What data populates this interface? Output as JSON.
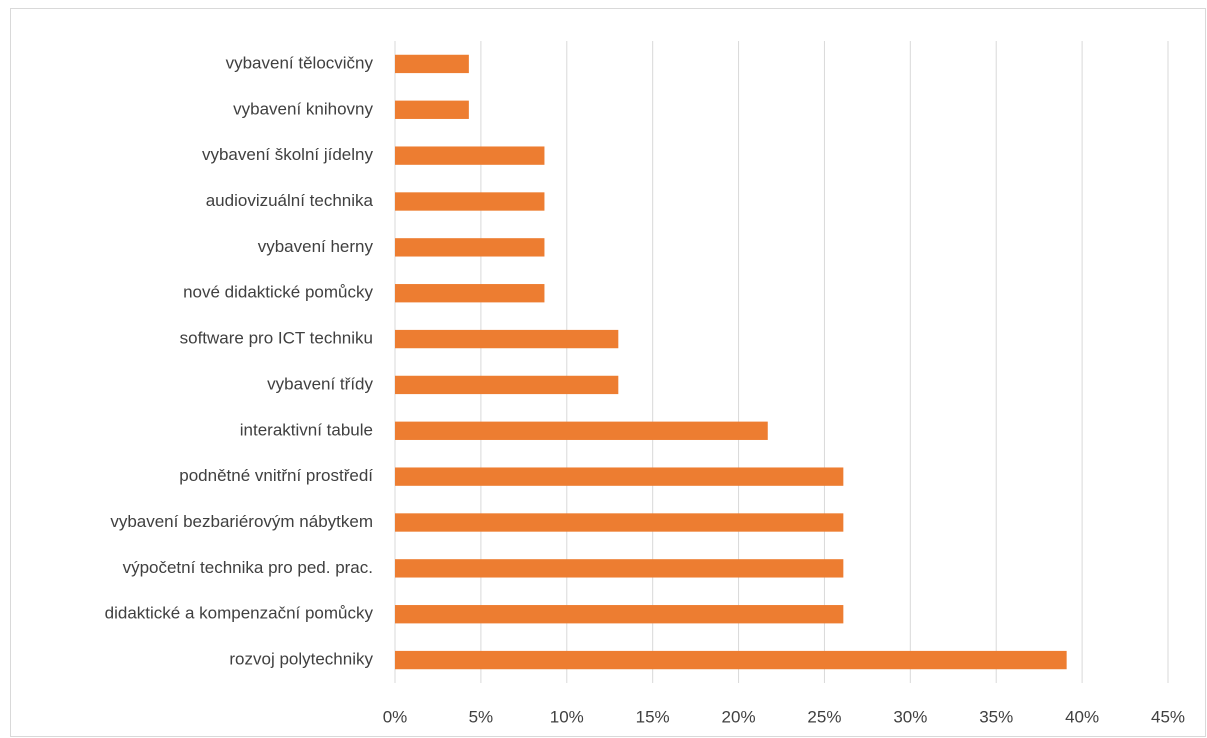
{
  "chart_data": {
    "type": "bar",
    "orientation": "horizontal",
    "categories": [
      "vybavení tělocvičny",
      "vybavení knihovny",
      "vybavení školní jídelny",
      "audiovizuální technika",
      "vybavení herny",
      "nové didaktické pomůcky",
      "software pro ICT techniku",
      "vybavení třídy",
      "interaktivní tabule",
      "podnětné vnitřní prostředí",
      "vybavení bezbariérovým nábytkem",
      "výpočetní technika pro ped. prac.",
      "didaktické a kompenzační pomůcky",
      "rozvoj polytechniky"
    ],
    "values": [
      4.3,
      4.3,
      8.7,
      8.7,
      8.7,
      8.7,
      13.0,
      13.0,
      21.7,
      26.1,
      26.1,
      26.1,
      26.1,
      39.1
    ],
    "color": "#ed7d31",
    "xlim": [
      0,
      45
    ],
    "xticks": [
      {
        "value": 0,
        "label": "0%"
      },
      {
        "value": 5,
        "label": "5%"
      },
      {
        "value": 10,
        "label": "10%"
      },
      {
        "value": 15,
        "label": "15%"
      },
      {
        "value": 20,
        "label": "20%"
      },
      {
        "value": 25,
        "label": "25%"
      },
      {
        "value": 30,
        "label": "30%"
      },
      {
        "value": 35,
        "label": "35%"
      },
      {
        "value": 40,
        "label": "40%"
      },
      {
        "value": 45,
        "label": "45%"
      }
    ],
    "grid": true
  }
}
